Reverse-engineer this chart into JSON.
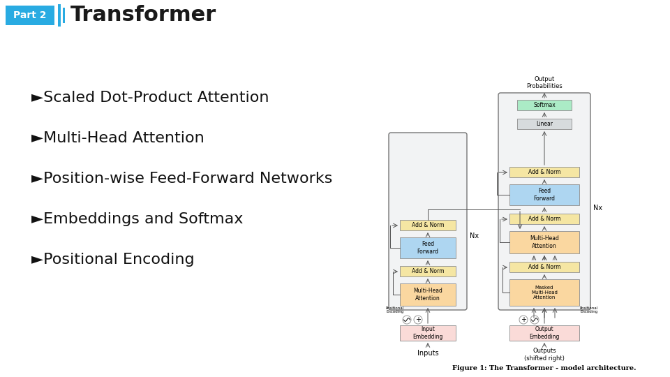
{
  "title": "Transformer",
  "part_label": "Part 2",
  "part_bg_color": "#29ABE2",
  "part_text_color": "#FFFFFF",
  "divider_color": "#29ABE2",
  "title_color": "#1A1A1A",
  "bg_color": "#FFFFFF",
  "bullet_items": [
    "►Scaled Dot-Product Attention",
    "►Multi-Head Attention",
    "►Position-wise Feed-Forward Networks",
    "►Embeddings and Softmax",
    "►Positional Encoding"
  ],
  "bullet_fontsize": 16,
  "title_fontsize": 22,
  "part_fontsize": 10,
  "figure_caption": "Figure 1: The Transformer - model architecture.",
  "enc_add_norm_color": "#F5E6A3",
  "enc_feed_fwd_color": "#AED6F1",
  "enc_multi_head_color": "#FAD7A0",
  "enc_embedding_color": "#FADBD8",
  "dec_add_norm_color": "#F5E6A3",
  "dec_feed_fwd_color": "#AED6F1",
  "dec_multi_head_color": "#FAD7A0",
  "dec_masked_color": "#FAD7A0",
  "dec_embedding_color": "#FADBD8",
  "softmax_color": "#ABEBC6",
  "linear_color": "#D7DBDD",
  "outer_bg_color": "#F2F3F4",
  "arrow_color": "#555555",
  "box_edge_color": "#999999"
}
